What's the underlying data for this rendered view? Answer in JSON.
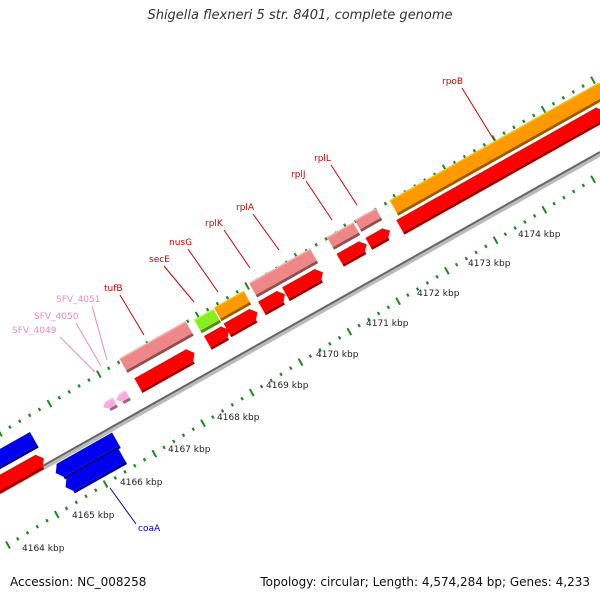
{
  "title": "Shigella flexneri 5 str. 8401, complete genome",
  "footer": {
    "accession": "Accession: NC_008258",
    "summary": "Topology: circular; Length: 4,574,284 bp; Genes: 4,233"
  },
  "colors": {
    "orange": "#ff9900",
    "red": "#ff0000",
    "pink": "#ee8888",
    "blue": "#0000ee",
    "green": "#88ee22",
    "light_pink": "#ffaadd",
    "backbone": "#999999",
    "ticks": "#1a8c1a"
  },
  "scale_labels": [
    "4164 kbp",
    "4165 kbp",
    "4166 kbp",
    "4167 kbp",
    "4168 kbp",
    "4169 kbp",
    "4170 kbp",
    "4171 kbp",
    "4172 kbp",
    "4173 kbp",
    "4174 kbp"
  ],
  "gene_labels": [
    {
      "name": "rpoB",
      "color": "#cc0000"
    },
    {
      "name": "rplL",
      "color": "#cc0000"
    },
    {
      "name": "rplJ",
      "color": "#cc0000"
    },
    {
      "name": "rplA",
      "color": "#cc0000"
    },
    {
      "name": "rplK",
      "color": "#cc0000"
    },
    {
      "name": "nusG",
      "color": "#cc0000"
    },
    {
      "name": "secE",
      "color": "#cc0000"
    },
    {
      "name": "tufB",
      "color": "#cc0000"
    },
    {
      "name": "SFV_4051",
      "color": "#ee88bb"
    },
    {
      "name": "SFV_4050",
      "color": "#ee88bb"
    },
    {
      "name": "SFV_4049",
      "color": "#ee88bb"
    },
    {
      "name": "coaA",
      "color": "#0000cc"
    }
  ]
}
